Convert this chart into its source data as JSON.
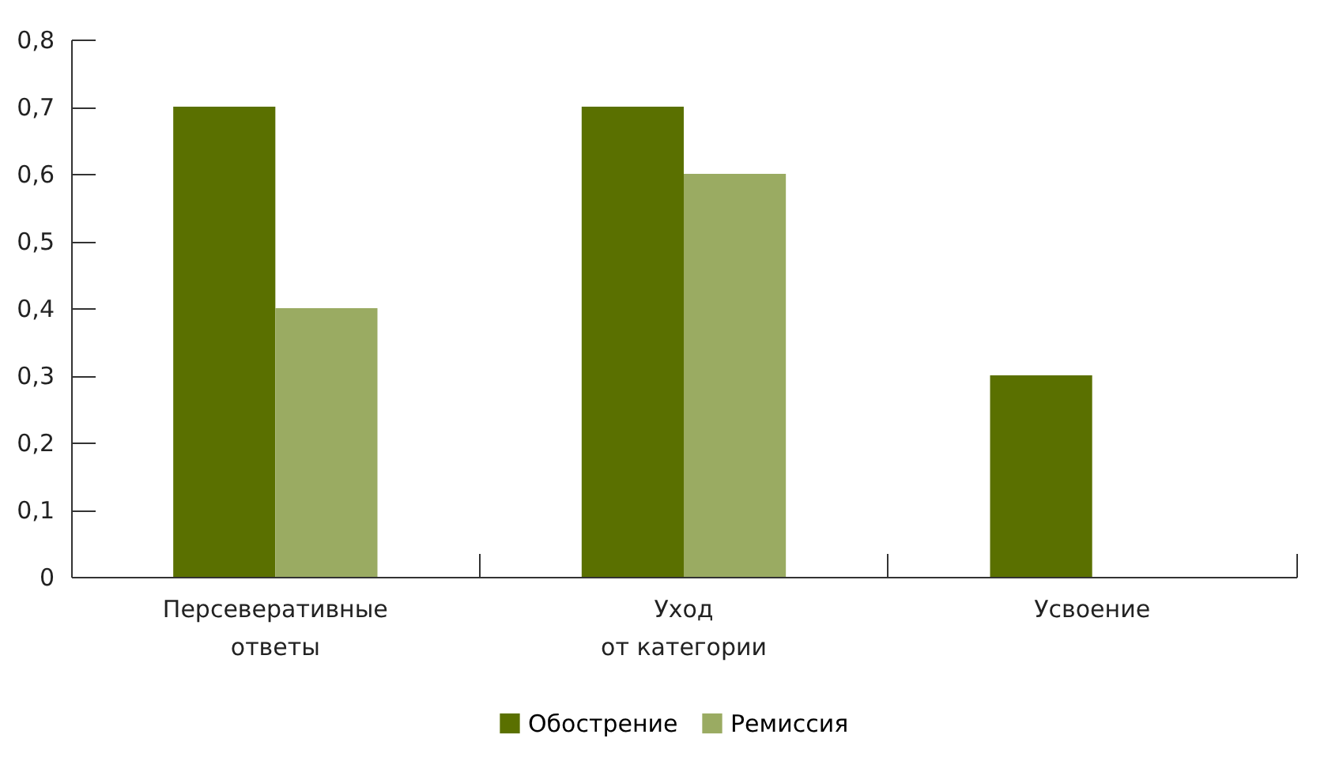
{
  "chart_data": {
    "type": "bar",
    "categories": [
      "Персеверативные\nответы",
      "Уход\nот категории",
      "Усвоение"
    ],
    "series": [
      {
        "name": "Обострение",
        "color": "#5a7000",
        "values": [
          0.7,
          0.7,
          0.3
        ]
      },
      {
        "name": "Ремиссия",
        "color": "#9aab62",
        "values": [
          0.4,
          0.6,
          0
        ]
      }
    ],
    "ylim": [
      0,
      0.8
    ],
    "yticks": [
      0,
      {
        "value": 0.1,
        "label": "0,1"
      },
      {
        "value": 0.2,
        "label": "0,2"
      },
      {
        "value": 0.3,
        "label": "0,3"
      },
      {
        "value": 0.4,
        "label": "0,4"
      },
      {
        "value": 0.5,
        "label": "0,5"
      },
      {
        "value": 0.6,
        "label": "0,6"
      },
      {
        "value": 0.7,
        "label": "0,7"
      },
      {
        "value": 0.8,
        "label": "0,8"
      }
    ],
    "grid": false,
    "legend": "bottom"
  }
}
